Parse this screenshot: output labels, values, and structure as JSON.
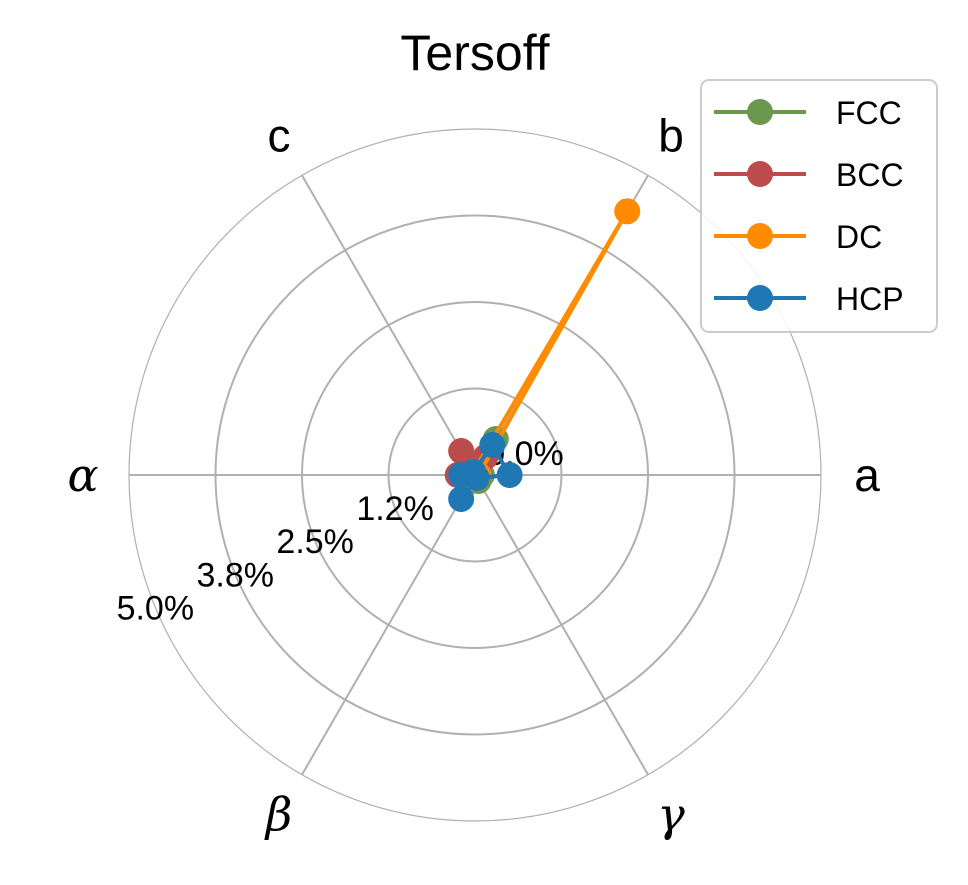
{
  "chart_data": {
    "type": "radar",
    "title": "Tersoff",
    "axes": [
      "a",
      "b",
      "c",
      "α",
      "β",
      "γ"
    ],
    "r_ticks": [
      0.0,
      1.25,
      2.5,
      3.75,
      5.0
    ],
    "r_tick_labels": [
      "0.0%",
      "1.2%",
      "2.5%",
      "3.8%",
      "5.0%"
    ],
    "r_max": 5.0,
    "grid": true,
    "legend_position": "top-right",
    "series": [
      {
        "name": "FCC",
        "color": "#6a994e",
        "values": [
          0.1,
          0.6,
          0.1,
          0.1,
          0.1,
          0.1
        ]
      },
      {
        "name": "BCC",
        "color": "#bc4b4b",
        "values": [
          0.05,
          0.3,
          0.4,
          0.25,
          0.05,
          0.05
        ]
      },
      {
        "name": "DC",
        "color": "#ff8c00",
        "values": [
          0.05,
          4.4,
          0.05,
          0.05,
          0.05,
          0.05
        ]
      },
      {
        "name": "HCP",
        "color": "#1f77b4",
        "values": [
          0.5,
          0.5,
          0.05,
          0.2,
          0.4,
          0.05
        ]
      }
    ]
  }
}
